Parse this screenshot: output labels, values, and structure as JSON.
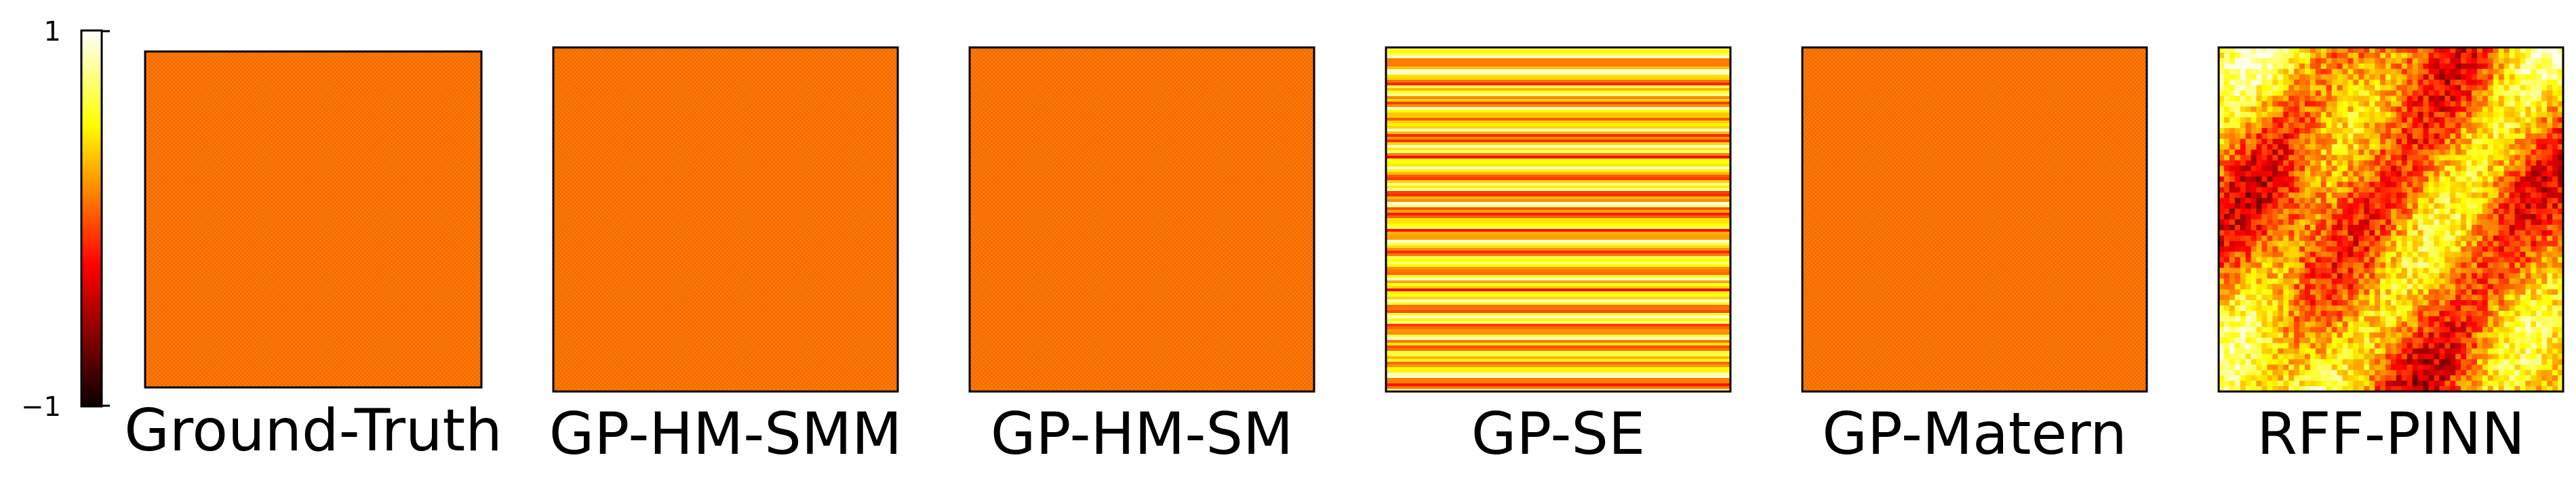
{
  "chart_data": {
    "type": "heatmap",
    "colormap": "hot",
    "colorbar": {
      "min": -1,
      "max": 1,
      "tick_labels": [
        "1",
        "−1"
      ]
    },
    "panels": [
      {
        "title": "Ground-Truth",
        "pattern": "uniform",
        "mean_value": 0.25
      },
      {
        "title": "GP-HM-SMM",
        "pattern": "uniform",
        "mean_value": 0.25
      },
      {
        "title": "GP-HM-SM",
        "pattern": "uniform",
        "mean_value": 0.25
      },
      {
        "title": "GP-SE",
        "pattern": "horizontal-stripes",
        "mean_value": 0.35
      },
      {
        "title": "GP-Matern",
        "pattern": "uniform",
        "mean_value": 0.25
      },
      {
        "title": "RFF-PINN",
        "pattern": "blotchy",
        "mean_value": 0.3
      }
    ]
  }
}
